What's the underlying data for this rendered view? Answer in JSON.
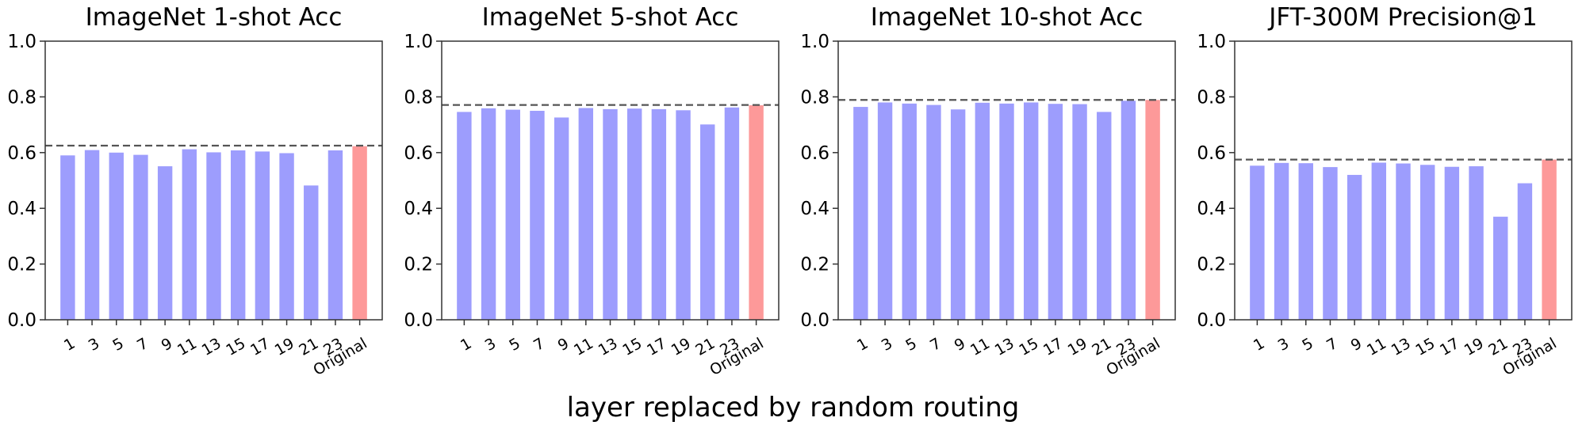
{
  "figure": {
    "xlabel": "layer replaced by random routing"
  },
  "chart_data": [
    {
      "type": "bar",
      "title": "ImageNet 1-shot Acc",
      "categories": [
        "1",
        "3",
        "5",
        "7",
        "9",
        "11",
        "13",
        "15",
        "17",
        "19",
        "21",
        "23",
        "Original"
      ],
      "values": [
        0.59,
        0.609,
        0.6,
        0.592,
        0.551,
        0.612,
        0.601,
        0.608,
        0.604,
        0.598,
        0.482,
        0.608,
        0.623
      ],
      "reference_line": 0.625,
      "xlabel": "",
      "ylabel": "",
      "ylim": [
        0,
        1.0
      ],
      "yticks": [
        "0.0",
        "0.2",
        "0.4",
        "0.6",
        "0.8",
        "1.0"
      ],
      "grid": false
    },
    {
      "type": "bar",
      "title": "ImageNet 5-shot Acc",
      "categories": [
        "1",
        "3",
        "5",
        "7",
        "9",
        "11",
        "13",
        "15",
        "17",
        "19",
        "21",
        "23",
        "Original"
      ],
      "values": [
        0.746,
        0.759,
        0.754,
        0.75,
        0.726,
        0.76,
        0.756,
        0.758,
        0.756,
        0.752,
        0.701,
        0.762,
        0.77
      ],
      "reference_line": 0.771,
      "xlabel": "",
      "ylabel": "",
      "ylim": [
        0,
        1.0
      ],
      "yticks": [
        "0.0",
        "0.2",
        "0.4",
        "0.6",
        "0.8",
        "1.0"
      ],
      "grid": false
    },
    {
      "type": "bar",
      "title": "ImageNet 10-shot Acc",
      "categories": [
        "1",
        "3",
        "5",
        "7",
        "9",
        "11",
        "13",
        "15",
        "17",
        "19",
        "21",
        "23",
        "Original"
      ],
      "values": [
        0.764,
        0.78,
        0.776,
        0.771,
        0.755,
        0.779,
        0.776,
        0.78,
        0.775,
        0.774,
        0.746,
        0.786,
        0.789
      ],
      "reference_line": 0.789,
      "xlabel": "",
      "ylabel": "",
      "ylim": [
        0,
        1.0
      ],
      "yticks": [
        "0.0",
        "0.2",
        "0.4",
        "0.6",
        "0.8",
        "1.0"
      ],
      "grid": false
    },
    {
      "type": "bar",
      "title": "JFT-300M Precision@1",
      "categories": [
        "1",
        "3",
        "5",
        "7",
        "9",
        "11",
        "13",
        "15",
        "17",
        "19",
        "21",
        "23",
        "Original"
      ],
      "values": [
        0.553,
        0.563,
        0.562,
        0.548,
        0.52,
        0.564,
        0.561,
        0.556,
        0.549,
        0.551,
        0.37,
        0.49,
        0.575
      ],
      "reference_line": 0.575,
      "xlabel": "",
      "ylabel": "",
      "ylim": [
        0,
        1.0
      ],
      "yticks": [
        "0.0",
        "0.2",
        "0.4",
        "0.6",
        "0.8",
        "1.0"
      ],
      "grid": false
    }
  ],
  "colors": {
    "bar": "#9d9dfd",
    "original_bar": "#fd9999",
    "reference_line": "#555555",
    "axis": "#333333"
  }
}
